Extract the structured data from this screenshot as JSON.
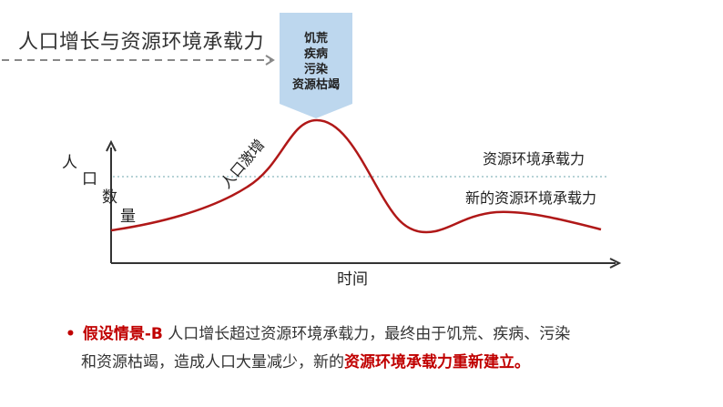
{
  "title": "人口增长与资源环境承载力",
  "callout": {
    "lines": [
      "饥荒",
      "疾病",
      "污染",
      "资源枯竭"
    ]
  },
  "diagram": {
    "y_axis_label": [
      "人",
      "口",
      "数",
      "量"
    ],
    "x_axis_label": "时间",
    "curve_label": "人口激增",
    "capacity_label": "资源环境承载力",
    "new_capacity_label": "新的资源环境承载力"
  },
  "text": {
    "bullet": "•",
    "scenario": "假设情景-B",
    "line1": " 人口增长超过资源环境承载力，最终由于饥荒、疾病、污染",
    "line2_prefix": "和资源枯竭，造成人口大量减少，新的",
    "line2_highlight": "资源环境承载力重新建立。"
  },
  "colors": {
    "accent": "#c00000",
    "callout_fill": "#bdd7ee",
    "dotted_line": "#9dc3c8"
  }
}
